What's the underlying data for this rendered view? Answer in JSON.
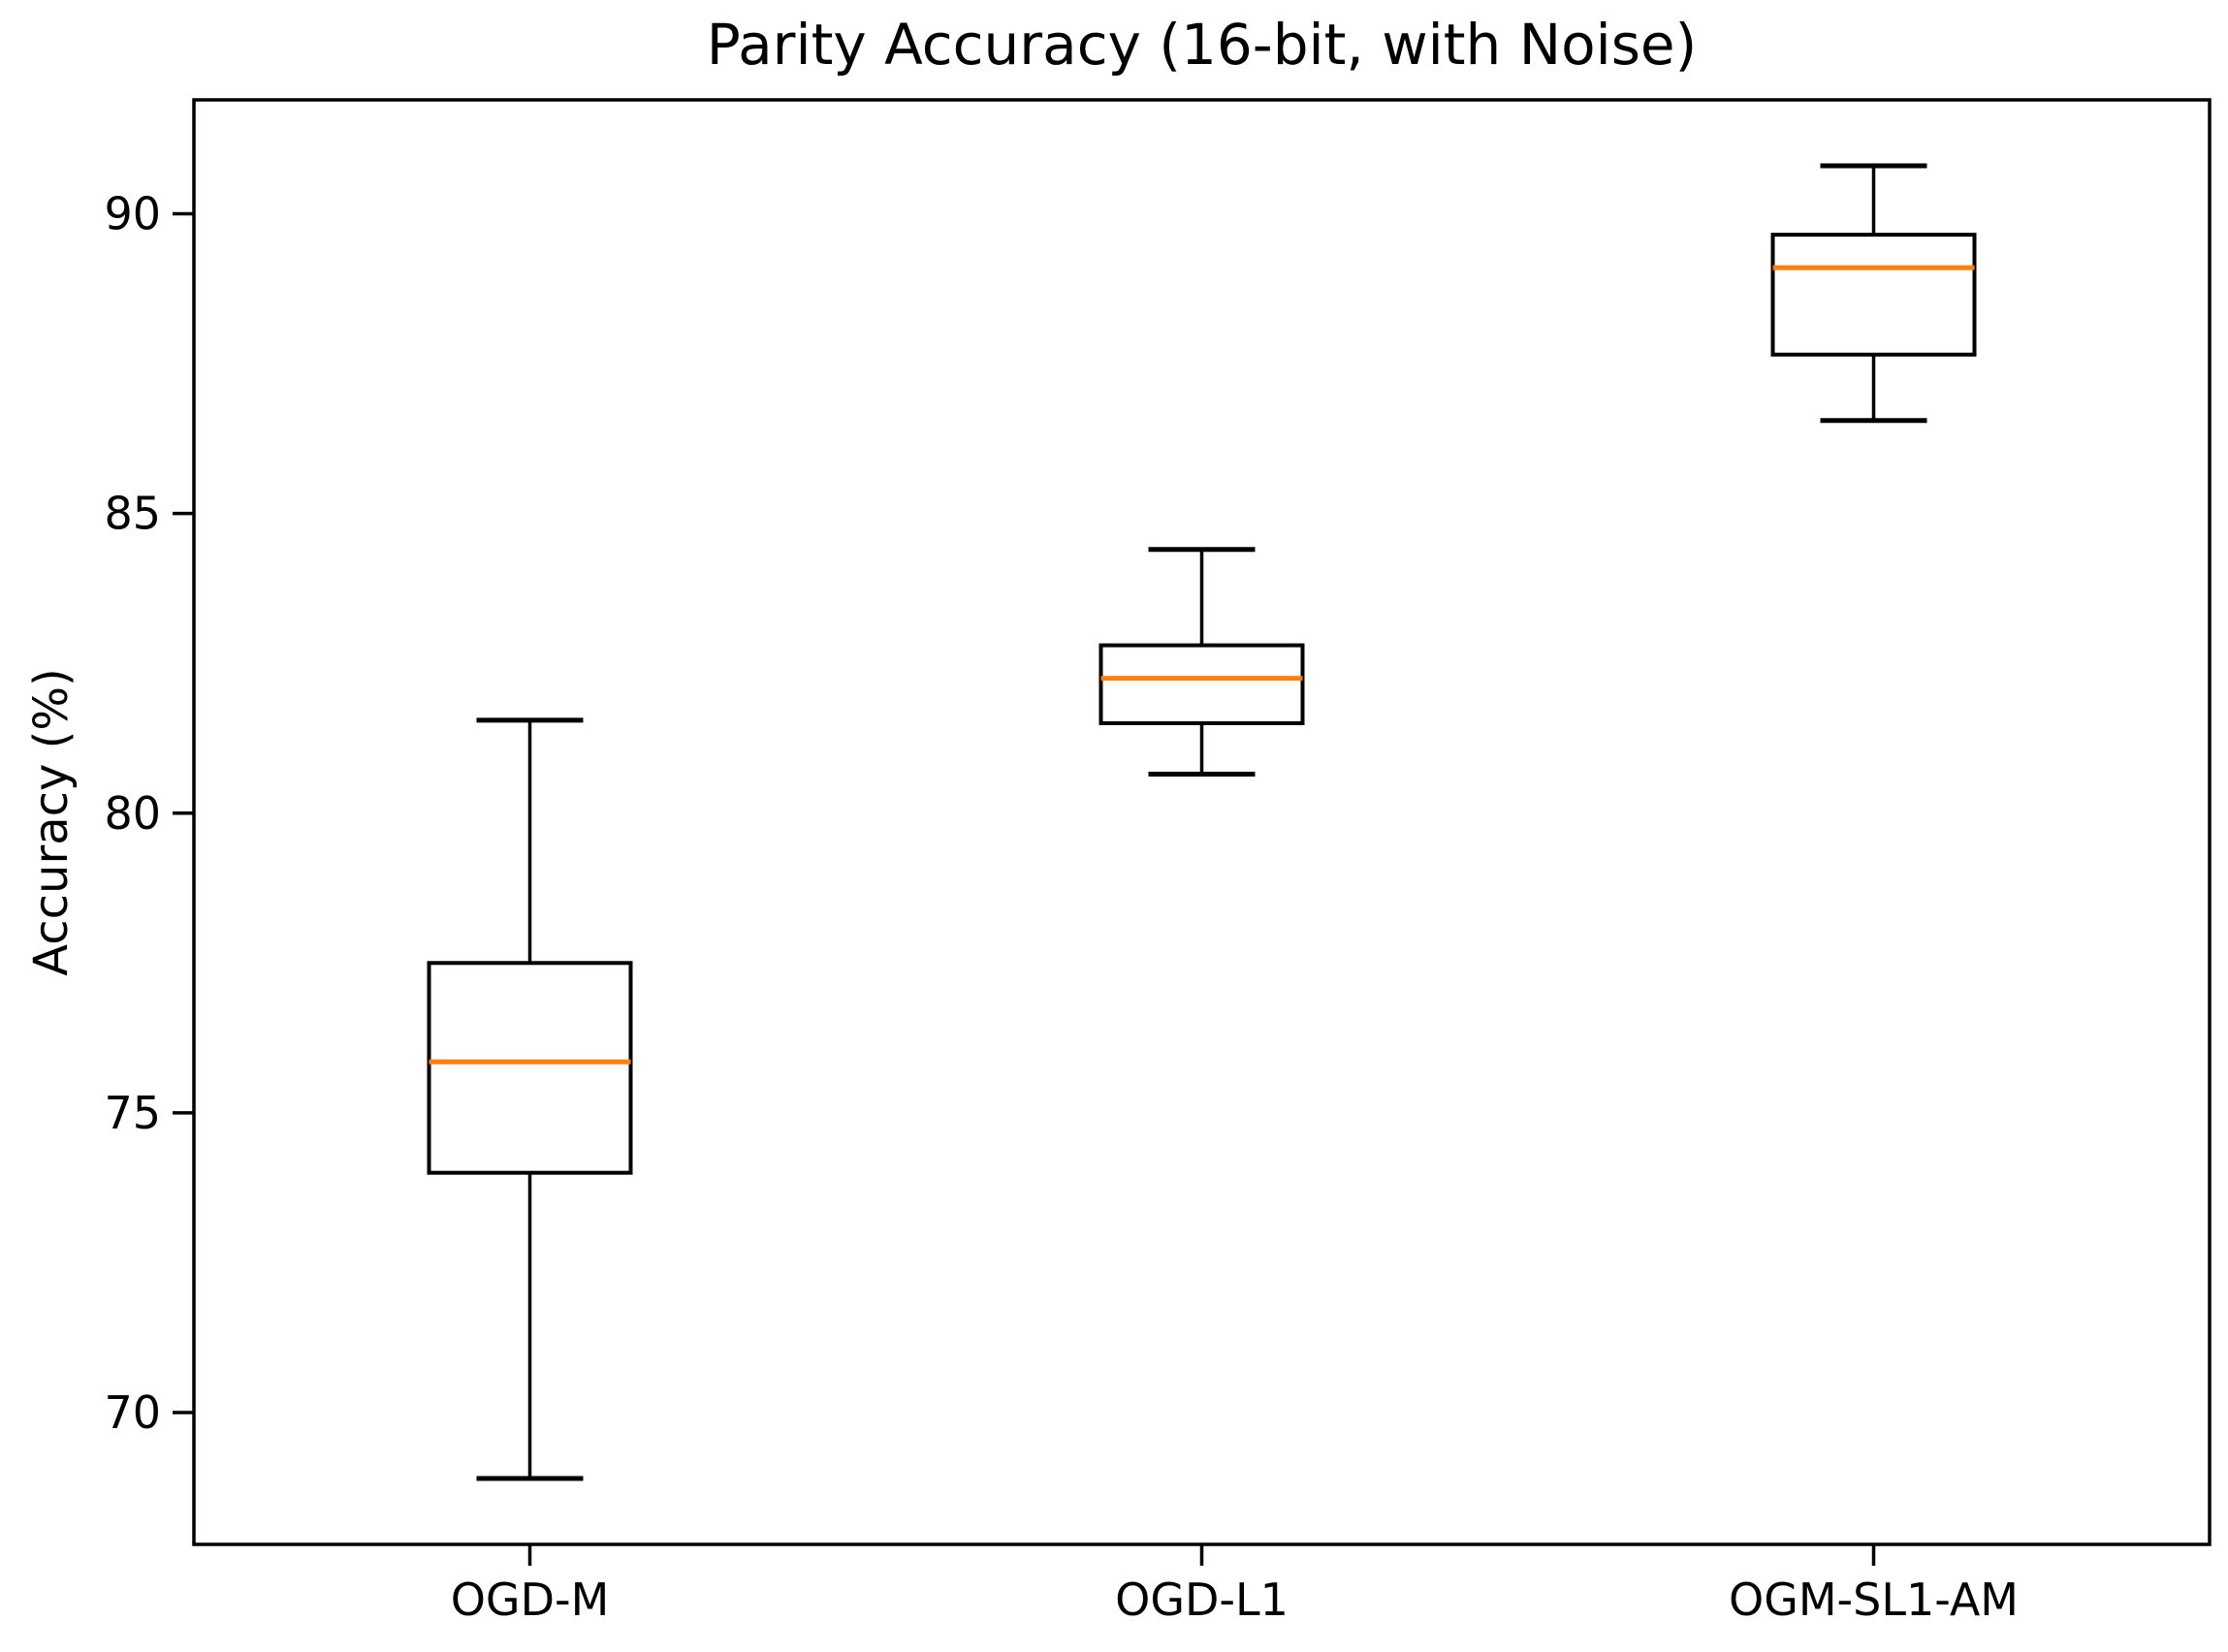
{
  "figure": {
    "background": "#ffffff"
  },
  "chart_data": {
    "type": "boxplot",
    "title": "Parity Accuracy (16-bit, with Noise)",
    "ylabel": "Accuracy (%)",
    "xlabel": "",
    "categories": [
      "OGD-M",
      "OGD-L1",
      "OGM-SL1-AM"
    ],
    "yticks": [
      70,
      75,
      80,
      85,
      90
    ],
    "ylim": [
      67.8,
      91.9
    ],
    "grid": false,
    "legend": "none",
    "colors": {
      "box_line": "#000000",
      "whisker_line": "#000000",
      "cap_line": "#000000",
      "median_line": "#ff7f0e",
      "axis_line": "#000000",
      "text": "#000000",
      "background": "#ffffff"
    },
    "series": [
      {
        "label": "OGD-M",
        "whisker_low": 68.9,
        "q1": 74.0,
        "median": 75.85,
        "q3": 77.5,
        "whisker_high": 81.55
      },
      {
        "label": "OGD-L1",
        "whisker_low": 80.65,
        "q1": 81.5,
        "median": 82.25,
        "q3": 82.8,
        "whisker_high": 84.4
      },
      {
        "label": "OGM-SL1-AM",
        "whisker_low": 86.55,
        "q1": 87.65,
        "median": 89.1,
        "q3": 89.65,
        "whisker_high": 90.8
      }
    ]
  }
}
